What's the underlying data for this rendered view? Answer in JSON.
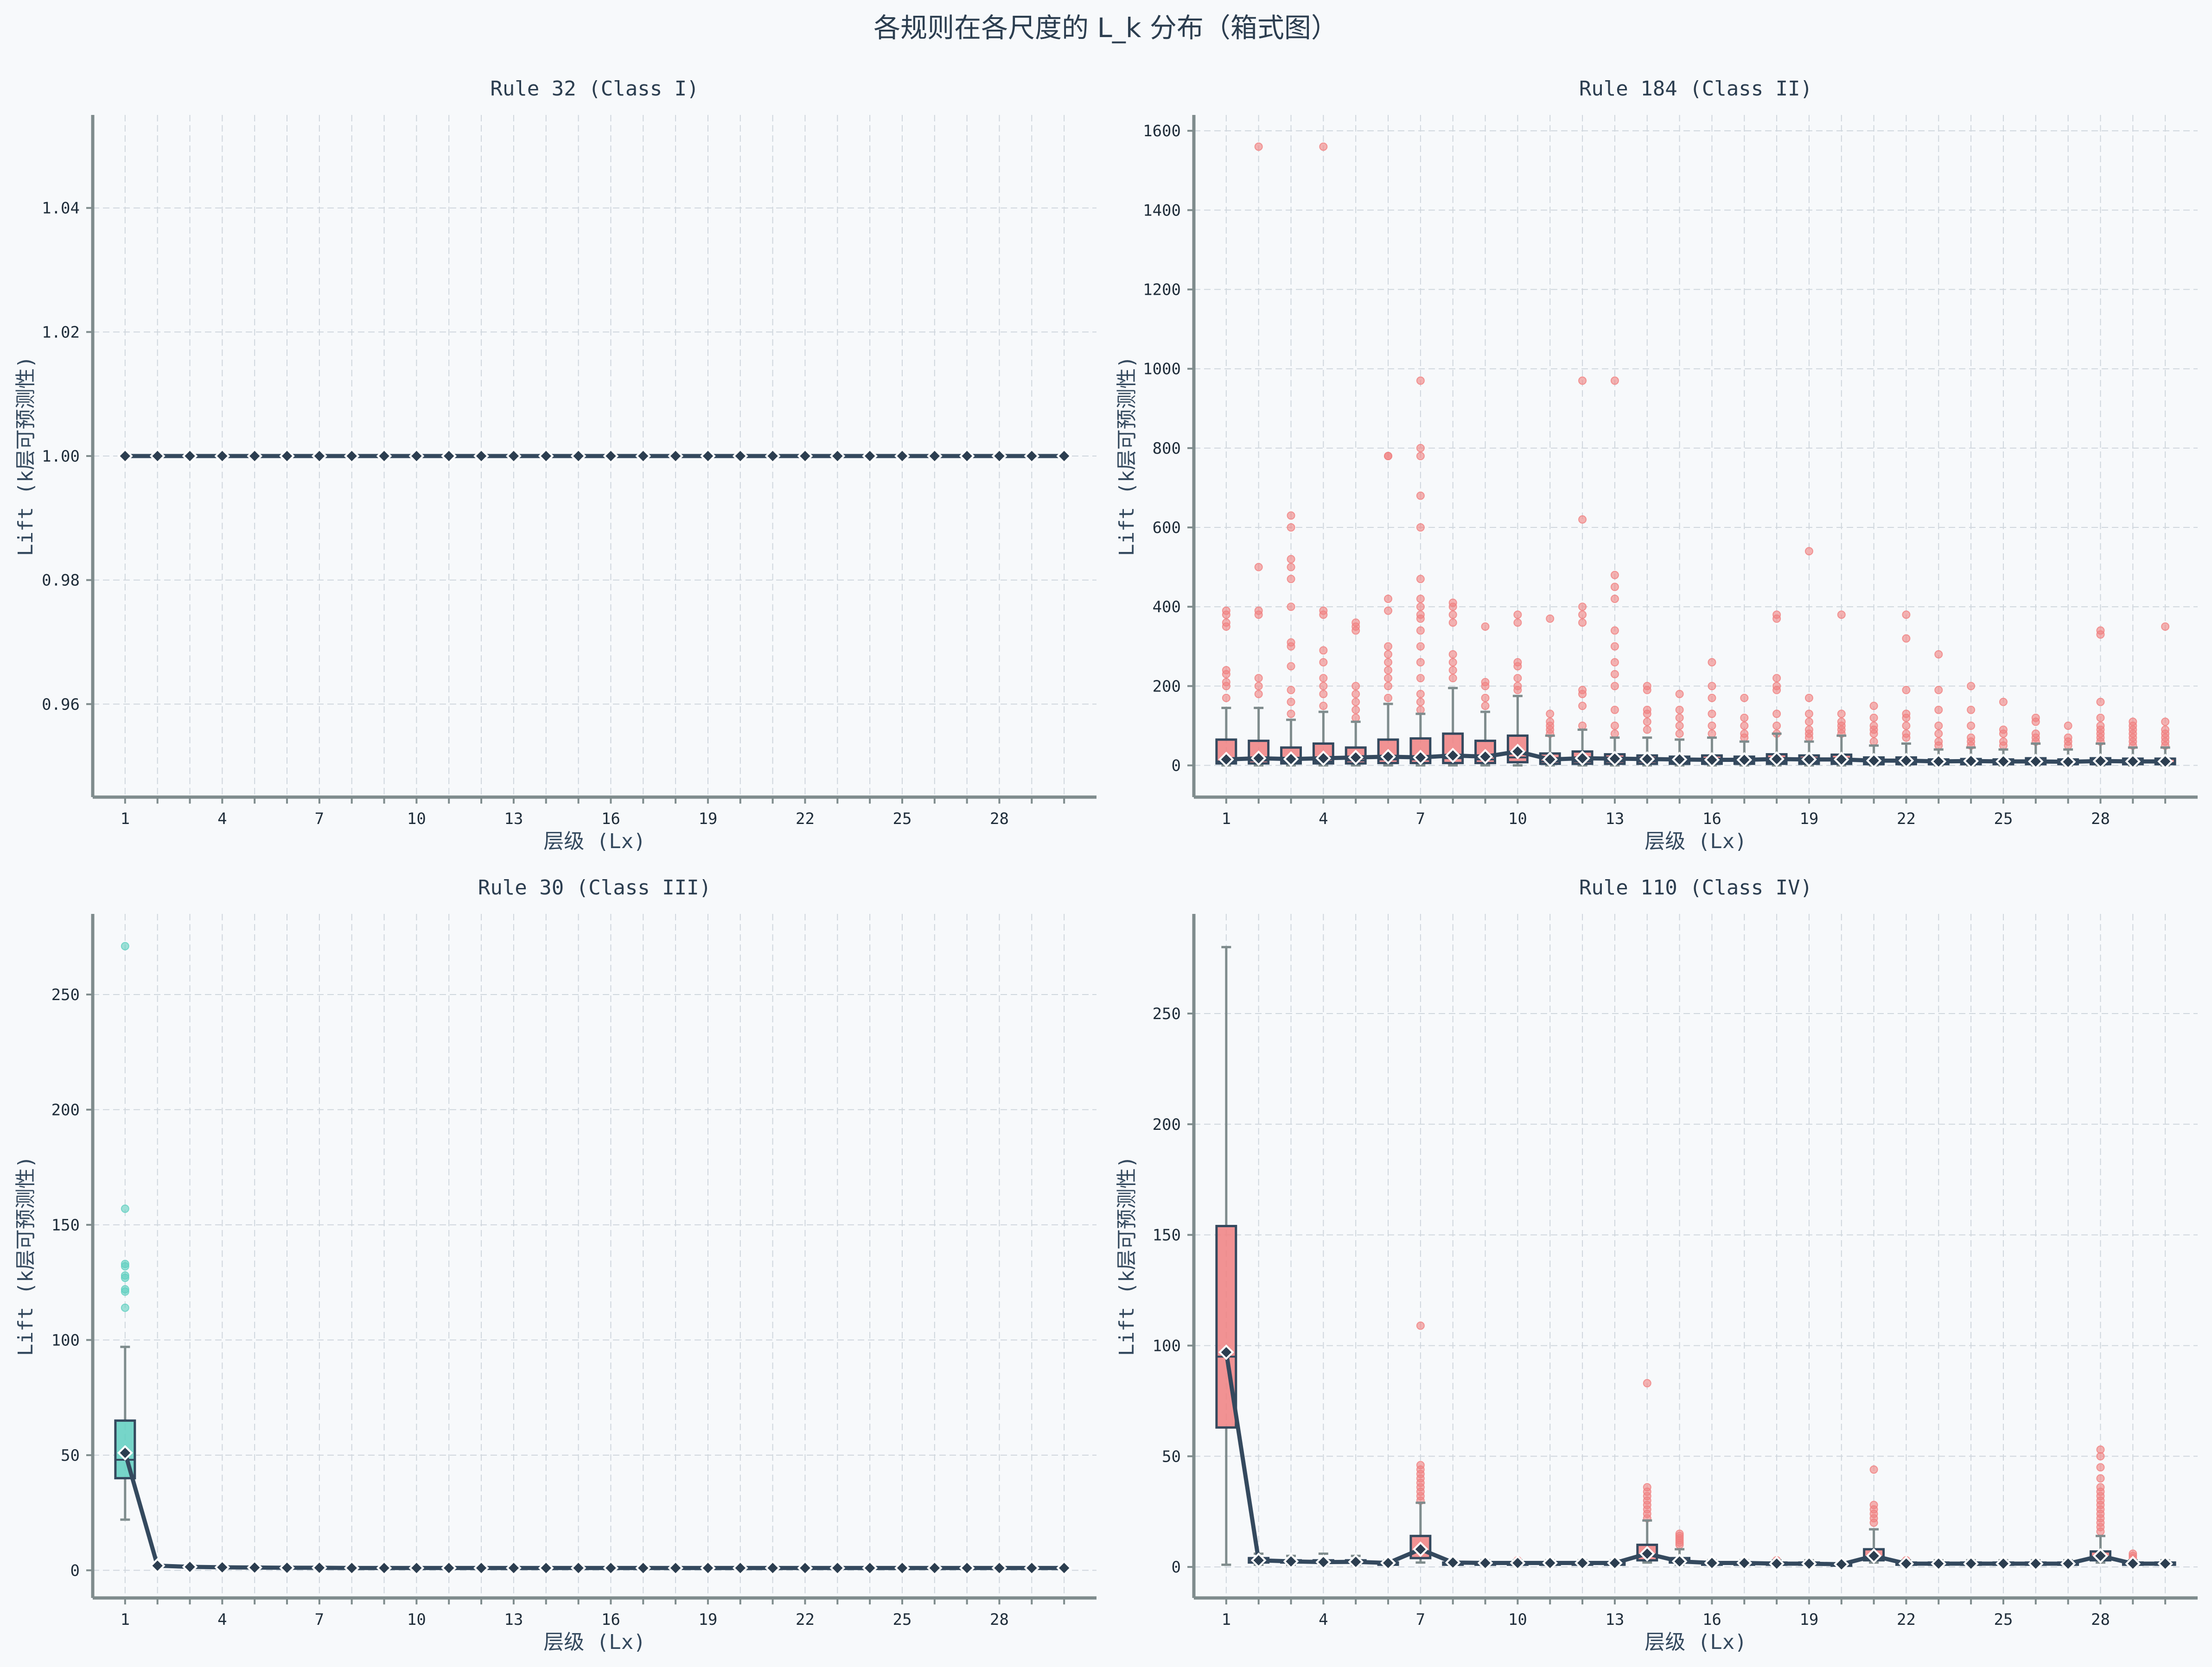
{
  "title": "各规则在各尺度的 L_k 分布（箱式图）",
  "colors": {
    "dark": "#34495e",
    "marker": "#2c3e50",
    "red": "#f08080",
    "teal": "#5fcfc0",
    "whisker": "#7f8c8d"
  },
  "chart_data": [
    {
      "type": "box",
      "title": "Rule 32 (Class I)",
      "xlabel": "层级 (Lx)",
      "ylabel": "Lift (k层可预测性)",
      "ylim": [
        0.945,
        1.055
      ],
      "yticks": [
        0.96,
        0.98,
        1.0,
        1.02,
        1.04
      ],
      "yticklabels": [
        "0.96",
        "0.98",
        "1.00",
        "1.02",
        "1.04"
      ],
      "xticks": [
        1,
        4,
        7,
        10,
        13,
        16,
        19,
        22,
        25,
        28
      ],
      "x": [
        1,
        2,
        3,
        4,
        5,
        6,
        7,
        8,
        9,
        10,
        11,
        12,
        13,
        14,
        15,
        16,
        17,
        18,
        19,
        20,
        21,
        22,
        23,
        24,
        25,
        26,
        27,
        28,
        29,
        30
      ],
      "mean": [
        1,
        1,
        1,
        1,
        1,
        1,
        1,
        1,
        1,
        1,
        1,
        1,
        1,
        1,
        1,
        1,
        1,
        1,
        1,
        1,
        1,
        1,
        1,
        1,
        1,
        1,
        1,
        1,
        1,
        1
      ],
      "box_color": "#5fcfc0",
      "boxes": [],
      "outliers": []
    },
    {
      "type": "box",
      "title": "Rule 184 (Class II)",
      "xlabel": "层级 (Lx)",
      "ylabel": "Lift (k层可预测性)",
      "ylim": [
        -80,
        1640
      ],
      "yticks": [
        0,
        200,
        400,
        600,
        800,
        1000,
        1200,
        1400,
        1600
      ],
      "yticklabels": [
        "0",
        "200",
        "400",
        "600",
        "800",
        "1000",
        "1200",
        "1400",
        "1600"
      ],
      "xticks": [
        1,
        4,
        7,
        10,
        13,
        16,
        19,
        22,
        25,
        28
      ],
      "x": [
        1,
        2,
        3,
        4,
        5,
        6,
        7,
        8,
        9,
        10,
        11,
        12,
        13,
        14,
        15,
        16,
        17,
        18,
        19,
        20,
        21,
        22,
        23,
        24,
        25,
        26,
        27,
        28,
        29,
        30
      ],
      "mean": [
        15,
        18,
        16,
        18,
        20,
        22,
        20,
        25,
        22,
        35,
        15,
        18,
        17,
        16,
        15,
        14,
        14,
        16,
        15,
        15,
        12,
        12,
        10,
        11,
        10,
        10,
        9,
        11,
        10,
        10
      ],
      "box_color": "#f08080",
      "boxes": [
        [
          0,
          5,
          10,
          65,
          145
        ],
        [
          0,
          5,
          12,
          62,
          145
        ],
        [
          0,
          5,
          10,
          45,
          115
        ],
        [
          0,
          5,
          10,
          55,
          135
        ],
        [
          0,
          5,
          12,
          45,
          110
        ],
        [
          0,
          6,
          15,
          65,
          155
        ],
        [
          0,
          6,
          15,
          68,
          130
        ],
        [
          0,
          6,
          18,
          80,
          195
        ],
        [
          0,
          6,
          15,
          62,
          135
        ],
        [
          0,
          8,
          20,
          75,
          175
        ],
        [
          0,
          4,
          10,
          30,
          75
        ],
        [
          0,
          4,
          10,
          35,
          90
        ],
        [
          0,
          4,
          10,
          28,
          70
        ],
        [
          0,
          4,
          10,
          25,
          70
        ],
        [
          0,
          4,
          8,
          22,
          65
        ],
        [
          0,
          4,
          9,
          25,
          70
        ],
        [
          0,
          4,
          8,
          22,
          60
        ],
        [
          0,
          4,
          9,
          28,
          80
        ],
        [
          0,
          4,
          8,
          25,
          60
        ],
        [
          0,
          4,
          9,
          27,
          75
        ],
        [
          0,
          3,
          7,
          20,
          50
        ],
        [
          0,
          3,
          7,
          20,
          55
        ],
        [
          0,
          3,
          6,
          15,
          40
        ],
        [
          0,
          3,
          6,
          16,
          45
        ],
        [
          0,
          3,
          6,
          15,
          40
        ],
        [
          0,
          3,
          6,
          18,
          55
        ],
        [
          0,
          3,
          5,
          15,
          40
        ],
        [
          0,
          3,
          6,
          18,
          55
        ],
        [
          0,
          3,
          6,
          17,
          45
        ],
        [
          0,
          3,
          6,
          17,
          45
        ]
      ],
      "outliers": [
        [
          210,
          230,
          240,
          200,
          170,
          350,
          360,
          380,
          390
        ],
        [
          180,
          200,
          220,
          380,
          390,
          500,
          1560
        ],
        [
          130,
          160,
          190,
          250,
          300,
          310,
          400,
          470,
          500,
          520,
          600,
          630
        ],
        [
          150,
          180,
          200,
          220,
          260,
          290,
          380,
          390,
          1560
        ],
        [
          120,
          140,
          160,
          180,
          200,
          340,
          350,
          360
        ],
        [
          170,
          200,
          220,
          240,
          260,
          280,
          300,
          390,
          420,
          780,
          780
        ],
        [
          140,
          160,
          180,
          220,
          260,
          300,
          340,
          370,
          380,
          400,
          420,
          470,
          600,
          680,
          780,
          800,
          970
        ],
        [
          220,
          240,
          260,
          280,
          360,
          380,
          400,
          410
        ],
        [
          150,
          170,
          200,
          210,
          350
        ],
        [
          190,
          200,
          220,
          250,
          260,
          360,
          380
        ],
        [
          80,
          90,
          100,
          110,
          130,
          370
        ],
        [
          100,
          150,
          180,
          190,
          360,
          380,
          400,
          620,
          970
        ],
        [
          80,
          100,
          140,
          200,
          230,
          260,
          300,
          340,
          420,
          450,
          480,
          970
        ],
        [
          90,
          110,
          130,
          140,
          190,
          200
        ],
        [
          80,
          100,
          120,
          140,
          180
        ],
        [
          80,
          100,
          130,
          170,
          200,
          260
        ],
        [
          70,
          80,
          100,
          120,
          170
        ],
        [
          80,
          100,
          130,
          190,
          200,
          220,
          370,
          380
        ],
        [
          70,
          80,
          90,
          110,
          130,
          170,
          540
        ],
        [
          80,
          90,
          100,
          110,
          130,
          380
        ],
        [
          60,
          80,
          90,
          100,
          120,
          150
        ],
        [
          70,
          80,
          100,
          120,
          130,
          190,
          320,
          380
        ],
        [
          50,
          60,
          80,
          100,
          140,
          190,
          280
        ],
        [
          50,
          60,
          70,
          100,
          140,
          200
        ],
        [
          50,
          60,
          80,
          90,
          160
        ],
        [
          60,
          70,
          80,
          110,
          120
        ],
        [
          50,
          60,
          70,
          100
        ],
        [
          60,
          70,
          80,
          90,
          100,
          120,
          160,
          330,
          340
        ],
        [
          50,
          60,
          70,
          80,
          90,
          100,
          110
        ],
        [
          50,
          60,
          70,
          80,
          90,
          110,
          350
        ]
      ]
    },
    {
      "type": "box",
      "title": "Rule 30 (Class III)",
      "xlabel": "层级 (Lx)",
      "ylabel": "Lift (k层可预测性)",
      "ylim": [
        -12,
        285
      ],
      "yticks": [
        0,
        50,
        100,
        150,
        200,
        250
      ],
      "yticklabels": [
        "0",
        "50",
        "100",
        "150",
        "200",
        "250"
      ],
      "xticks": [
        1,
        4,
        7,
        10,
        13,
        16,
        19,
        22,
        25,
        28
      ],
      "x": [
        1,
        2,
        3,
        4,
        5,
        6,
        7,
        8,
        9,
        10,
        11,
        12,
        13,
        14,
        15,
        16,
        17,
        18,
        19,
        20,
        21,
        22,
        23,
        24,
        25,
        26,
        27,
        28,
        29,
        30
      ],
      "mean": [
        51,
        2,
        1.5,
        1.3,
        1.2,
        1.1,
        1.1,
        1,
        1,
        1,
        1,
        1,
        1,
        1,
        1,
        1,
        1,
        1,
        1,
        1,
        1,
        1,
        1,
        1,
        1,
        1,
        1,
        1,
        1,
        1
      ],
      "box_color": "#5fcfc0",
      "boxes": [
        [
          22,
          40,
          48,
          65,
          97
        ]
      ],
      "outliers": [
        [
          114,
          121,
          122,
          127,
          128,
          132,
          133,
          157,
          271
        ]
      ]
    },
    {
      "type": "box",
      "title": "Rule 110 (Class IV)",
      "xlabel": "层级 (Lx)",
      "ylabel": "Lift (k层可预测性)",
      "ylim": [
        -14,
        295
      ],
      "yticks": [
        0,
        50,
        100,
        150,
        200,
        250
      ],
      "yticklabels": [
        "0",
        "50",
        "100",
        "150",
        "200",
        "250"
      ],
      "xticks": [
        1,
        4,
        7,
        10,
        13,
        16,
        19,
        22,
        25,
        28
      ],
      "x": [
        1,
        2,
        3,
        4,
        5,
        6,
        7,
        8,
        9,
        10,
        11,
        12,
        13,
        14,
        15,
        16,
        17,
        18,
        19,
        20,
        21,
        22,
        23,
        24,
        25,
        26,
        27,
        28,
        29,
        30
      ],
      "mean": [
        97,
        3,
        2.5,
        2.2,
        2.3,
        1.8,
        8,
        2,
        1.8,
        1.8,
        1.8,
        1.8,
        1.8,
        6,
        2.5,
        1.8,
        1.8,
        1.5,
        1.5,
        1.2,
        5,
        1.5,
        1.5,
        1.5,
        1.5,
        1.5,
        1.5,
        5,
        1.5,
        1.5
      ],
      "box_color": "#f08080",
      "boxes": [
        [
          1,
          63,
          95,
          154,
          280
        ],
        [
          1,
          2,
          3,
          4,
          6
        ],
        [
          1,
          2,
          2,
          3,
          5
        ],
        [
          1,
          2,
          2,
          3,
          6
        ],
        [
          1,
          2,
          2,
          3,
          5
        ],
        [
          1,
          1,
          2,
          2,
          3
        ],
        [
          2,
          4,
          7,
          14,
          29
        ],
        [
          1,
          1,
          2,
          2,
          3
        ],
        [
          1,
          1,
          2,
          2,
          3
        ],
        [
          1,
          1,
          2,
          2,
          3
        ],
        [
          1,
          1,
          2,
          2,
          3
        ],
        [
          1,
          1,
          2,
          2,
          3
        ],
        [
          1,
          1,
          1,
          2,
          3
        ],
        [
          2,
          3,
          5,
          10,
          21
        ],
        [
          1,
          2,
          3,
          4,
          8
        ],
        [
          1,
          1,
          2,
          2,
          3
        ],
        [
          1,
          1,
          2,
          2,
          3
        ],
        [
          1,
          1,
          1,
          2,
          3
        ],
        [
          1,
          1,
          1,
          2,
          3
        ],
        [
          1,
          1,
          1,
          1,
          2
        ],
        [
          2,
          3,
          4,
          8,
          17
        ],
        [
          1,
          1,
          1,
          2,
          3
        ],
        [
          1,
          1,
          1,
          2,
          3
        ],
        [
          1,
          1,
          1,
          2,
          3
        ],
        [
          1,
          1,
          1,
          2,
          3
        ],
        [
          1,
          1,
          1,
          2,
          3
        ],
        [
          1,
          1,
          1,
          2,
          3
        ],
        [
          2,
          3,
          4,
          7,
          14
        ],
        [
          1,
          1,
          1,
          2,
          3
        ],
        [
          1,
          1,
          1,
          2,
          3
        ]
      ],
      "outliers": [
        [],
        [],
        [],
        [],
        [],
        [],
        [
          30,
          32,
          34,
          36,
          38,
          40,
          42,
          44,
          46,
          109
        ],
        [],
        [],
        [
          3
        ],
        [],
        [],
        [],
        [
          22,
          24,
          26,
          28,
          30,
          32,
          34,
          36,
          83
        ],
        [
          10,
          11,
          12,
          13,
          14,
          15
        ],
        [],
        [],
        [
          3
        ],
        [],
        [],
        [
          20,
          22,
          24,
          26,
          28,
          44
        ],
        [
          3
        ],
        [],
        [],
        [],
        [],
        [],
        [
          16,
          18,
          20,
          22,
          24,
          26,
          28,
          30,
          32,
          34,
          36,
          40,
          45,
          50,
          53
        ],
        [
          4,
          5,
          6
        ],
        []
      ]
    }
  ]
}
